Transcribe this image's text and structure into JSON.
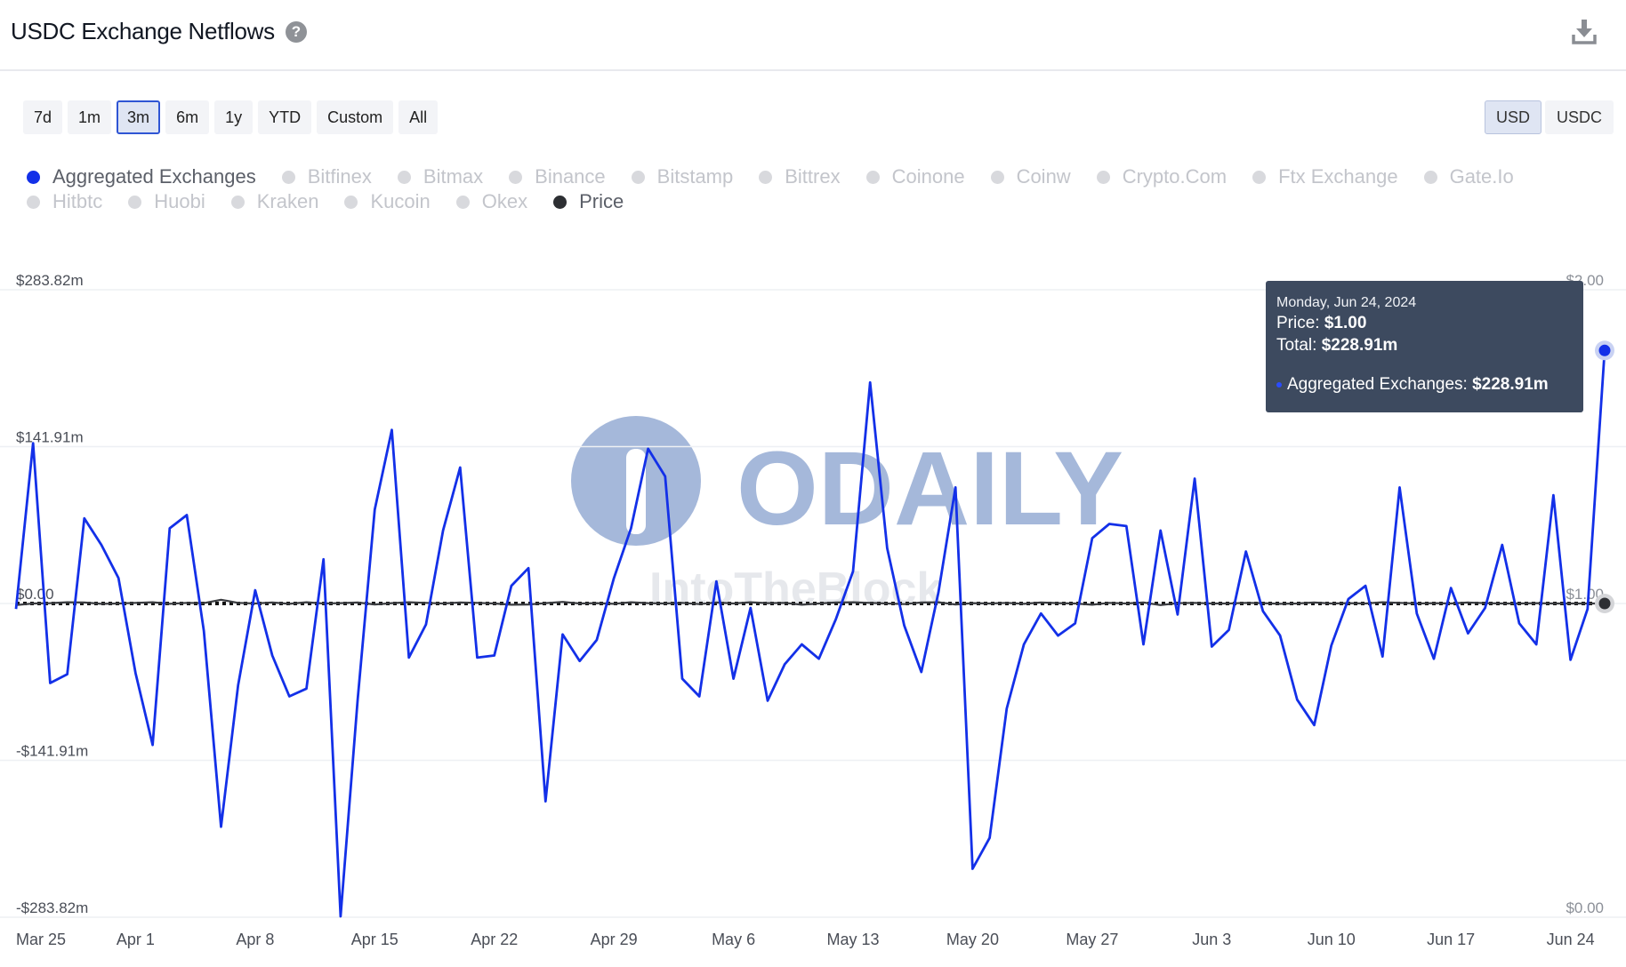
{
  "header": {
    "title": "USDC Exchange Netflows",
    "help_icon": "question-circle-icon",
    "download_icon": "download-icon"
  },
  "range_buttons": [
    {
      "label": "7d",
      "active": false
    },
    {
      "label": "1m",
      "active": false
    },
    {
      "label": "3m",
      "active": true
    },
    {
      "label": "6m",
      "active": false
    },
    {
      "label": "1y",
      "active": false
    },
    {
      "label": "YTD",
      "active": false
    },
    {
      "label": "Custom",
      "active": false
    },
    {
      "label": "All",
      "active": false
    }
  ],
  "unit_buttons": [
    {
      "label": "USD",
      "active": true
    },
    {
      "label": "USDC",
      "active": false
    }
  ],
  "legend": [
    {
      "label": "Aggregated Exchanges",
      "enabled": true,
      "color": "#1330e8"
    },
    {
      "label": "Bitfinex",
      "enabled": false
    },
    {
      "label": "Bitmax",
      "enabled": false
    },
    {
      "label": "Binance",
      "enabled": false
    },
    {
      "label": "Bitstamp",
      "enabled": false
    },
    {
      "label": "Bittrex",
      "enabled": false
    },
    {
      "label": "Coinone",
      "enabled": false
    },
    {
      "label": "Coinw",
      "enabled": false
    },
    {
      "label": "Crypto.Com",
      "enabled": false
    },
    {
      "label": "Ftx Exchange",
      "enabled": false
    },
    {
      "label": "Gate.Io",
      "enabled": false
    },
    {
      "label": "Hitbtc",
      "enabled": false
    },
    {
      "label": "Huobi",
      "enabled": false
    },
    {
      "label": "Kraken",
      "enabled": false
    },
    {
      "label": "Kucoin",
      "enabled": false
    },
    {
      "label": "Okex",
      "enabled": false
    },
    {
      "label": "Price",
      "enabled": true,
      "color": "#2d2f33"
    }
  ],
  "tooltip": {
    "date": "Monday, Jun 24, 2024",
    "price_label": "Price:",
    "price_value": "$1.00",
    "total_label": "Total:",
    "total_value": "$228.91m",
    "series_label": "Aggregated Exchanges:",
    "series_value": "$228.91m"
  },
  "watermark": {
    "text1": "ODAILY",
    "text2": "IntoTheBlock"
  },
  "colors": {
    "netflow": "#1330e8",
    "price": "#3a3c40",
    "grid": "#eef0f4",
    "axis_text": "#4a4e57"
  },
  "chart_data": {
    "type": "line",
    "title": "USDC Exchange Netflows",
    "x_tick_labels": [
      "Mar 25",
      "Apr 1",
      "Apr 8",
      "Apr 15",
      "Apr 22",
      "Apr 29",
      "May 6",
      "May 13",
      "May 20",
      "May 27",
      "Jun 3",
      "Jun 10",
      "Jun 17",
      "Jun 24"
    ],
    "y_left_ticks": [
      "$283.82m",
      "$141.91m",
      "$0.00",
      "-$141.91m",
      "-$283.82m"
    ],
    "y_right_ticks": [
      "$2.00",
      "$1.00",
      "$0.00"
    ],
    "ylim_left": [
      -283.82,
      283.82
    ],
    "ylim_right": [
      0,
      2
    ],
    "grid": true,
    "legend_position": "top-left",
    "x_start": "2024-03-25",
    "series": [
      {
        "name": "Aggregated Exchanges",
        "axis": "left",
        "unit": "USD millions",
        "values": [
          -5,
          145,
          -72,
          -64,
          77,
          53,
          23,
          -63,
          -128,
          68,
          80,
          -25,
          -202,
          -74,
          12,
          -47,
          -84,
          -77,
          40,
          -283,
          -87,
          85,
          157,
          -49,
          -19,
          66,
          123,
          -49,
          -47,
          16,
          32,
          -179,
          -28,
          -52,
          -33,
          23,
          68,
          140,
          115,
          -68,
          -84,
          20,
          -68,
          -4,
          -88,
          -55,
          -37,
          -50,
          -14,
          29,
          200,
          50,
          -20,
          -62,
          10,
          105,
          -240,
          -212,
          -95,
          -37,
          -9,
          -29,
          -18,
          59,
          72,
          70,
          -37,
          66,
          -10,
          113,
          -39,
          -24,
          47,
          -7,
          -29,
          -87,
          -110,
          -38,
          4,
          16,
          -48,
          105,
          -9,
          -50,
          14,
          -27,
          -4,
          53,
          -18,
          -37,
          98,
          -51,
          -5,
          228.91
        ]
      },
      {
        "name": "Price",
        "axis": "right",
        "unit": "USD",
        "values": [
          0.995,
          1.0,
          1.001,
          1.004,
          1.003,
          0.999,
          1.0,
          1.002,
          1.004,
          0.999,
          1.002,
          1.001,
          1.012,
          1.002,
          1.0,
          1.003,
          0.999,
          1.004,
          1.0,
          1.001,
          1.003,
          0.997,
          1.001,
          1.004,
          1.002,
          1.0,
          1.003,
          1.002,
          1.0,
          0.996,
          0.997,
          1.001,
          1.005,
          1.0,
          1.001,
          0.999,
          1.004,
          1.001,
          1.0,
          1.002,
          0.998,
          1.003,
          1.0,
          1.004,
          1.001,
          1.002,
          0.996,
          1.0,
          1.003,
          1.004,
          1.002,
          1.0,
          0.998,
          1.003,
          1.004,
          0.997,
          1.001,
          1.0,
          1.002,
          0.999,
          1.003,
          1.001,
          1.0,
          0.996,
          1.002,
          1.0,
          1.003,
          0.995,
          1.001,
          1.002,
          1.0,
          1.0,
          1.002,
          1.001,
          0.999,
          1.0,
          1.003,
          1.0,
          1.001,
          1.0,
          1.004,
          1.002,
          1.0,
          1.001,
          1.0,
          1.003,
          1.001,
          1.0,
          1.0,
          1.001,
          1.0,
          1.0,
          1.0,
          1.0
        ]
      }
    ]
  }
}
